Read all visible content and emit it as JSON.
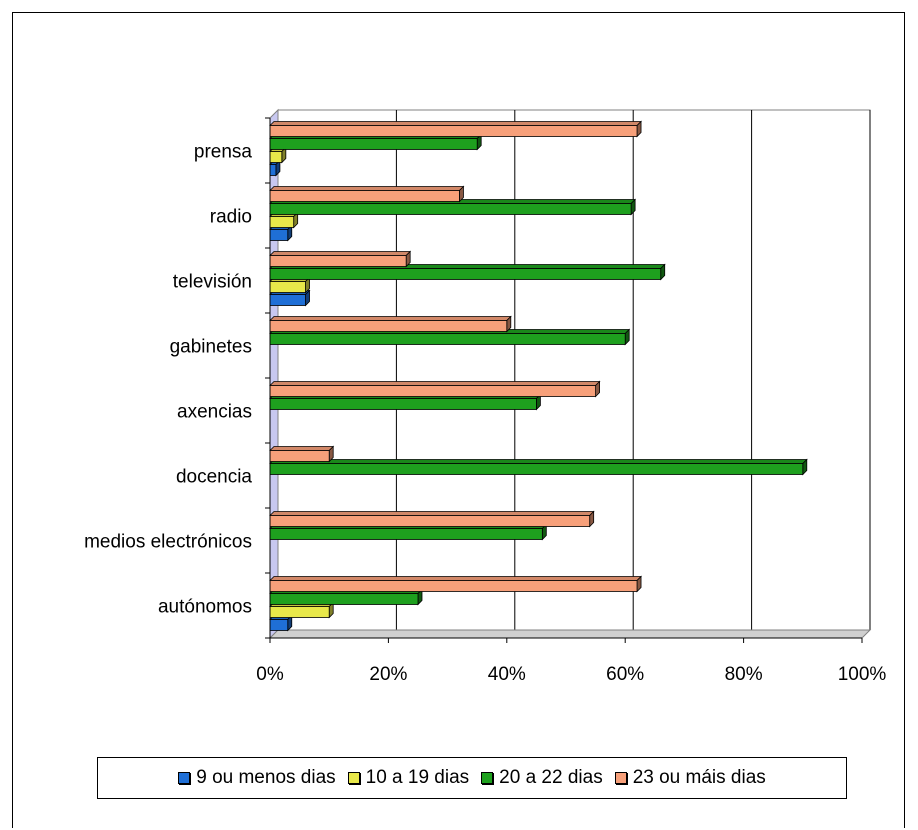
{
  "chart_data": {
    "type": "bar",
    "orientation": "horizontal",
    "stacked": false,
    "categories": [
      "prensa",
      "radio",
      "televisión",
      "gabinetes",
      "axencias",
      "docencia",
      "medios electrónicos",
      "autónomos"
    ],
    "series": [
      {
        "name": "9 ou menos dias",
        "color": "#1f6fd6",
        "values": [
          1,
          3,
          6,
          0,
          0,
          0,
          0,
          3
        ]
      },
      {
        "name": "10 a 19 dias",
        "color": "#e8e84a",
        "values": [
          2,
          4,
          6,
          0,
          0,
          0,
          0,
          10
        ]
      },
      {
        "name": "20 a 22 dias",
        "color": "#1ea01e",
        "values": [
          35,
          61,
          66,
          60,
          45,
          90,
          46,
          25
        ]
      },
      {
        "name": "23 ou máis dias",
        "color": "#f7a07a",
        "values": [
          62,
          32,
          23,
          40,
          55,
          10,
          54,
          62
        ]
      }
    ],
    "x_ticks": [
      "0%",
      "20%",
      "40%",
      "60%",
      "80%",
      "100%"
    ],
    "xlim": [
      0,
      100
    ],
    "grid": true,
    "legend_position": "bottom"
  }
}
